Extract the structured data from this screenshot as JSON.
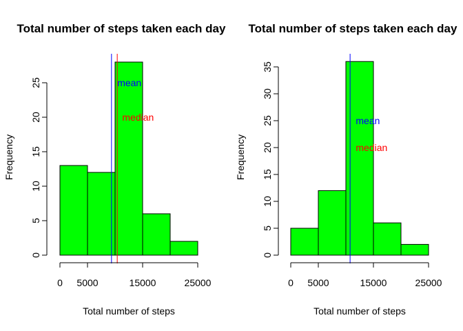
{
  "figure": {
    "background": "#ffffff"
  },
  "chart_data": [
    {
      "type": "bar",
      "title": "Total number of steps taken each day",
      "xlabel": "Total number of steps",
      "ylabel": "Frequency",
      "bin_edges": [
        0,
        5000,
        10000,
        15000,
        20000,
        25000
      ],
      "values": [
        13,
        12,
        28,
        6,
        2
      ],
      "xlim": [
        0,
        25000
      ],
      "ylim": [
        0,
        28
      ],
      "x_ticks": [
        0,
        5000,
        15000,
        25000
      ],
      "x_tick_labels": [
        "0",
        "5000",
        "15000",
        "25000"
      ],
      "y_ticks": [
        0,
        5,
        10,
        15,
        20,
        25
      ],
      "y_tick_labels": [
        "0",
        "5",
        "10",
        "15",
        "20",
        "25"
      ],
      "bar_color": "#00ff00",
      "grid": false,
      "vlines": [
        {
          "value": 9354,
          "color": "#0000ff"
        },
        {
          "value": 10395,
          "color": "#ff0000"
        }
      ],
      "annotations": [
        {
          "text": "mean",
          "x": 10400,
          "y": 25,
          "color": "#0000ff"
        },
        {
          "text": "median",
          "x": 11300,
          "y": 20,
          "color": "#ff0000"
        }
      ]
    },
    {
      "type": "bar",
      "title": "Total number of steps taken each day",
      "xlabel": "Total number of steps",
      "ylabel": "Frequency",
      "bin_edges": [
        0,
        5000,
        10000,
        15000,
        20000,
        25000
      ],
      "values": [
        5,
        12,
        36,
        6,
        2
      ],
      "xlim": [
        0,
        25000
      ],
      "ylim": [
        0,
        36
      ],
      "x_ticks": [
        0,
        5000,
        15000,
        25000
      ],
      "x_tick_labels": [
        "0",
        "5000",
        "15000",
        "25000"
      ],
      "y_ticks": [
        0,
        5,
        10,
        15,
        20,
        25,
        30,
        35
      ],
      "y_tick_labels": [
        "0",
        "5",
        "10",
        "15",
        "20",
        "25",
        "30",
        "35"
      ],
      "bar_color": "#00ff00",
      "grid": false,
      "vlines": [
        {
          "value": 10766,
          "color": "#0000ff"
        }
      ],
      "annotations": [
        {
          "text": "mean",
          "x": 11800,
          "y": 25,
          "color": "#0000ff"
        },
        {
          "text": "median",
          "x": 11800,
          "y": 20,
          "color": "#ff0000"
        }
      ]
    }
  ]
}
